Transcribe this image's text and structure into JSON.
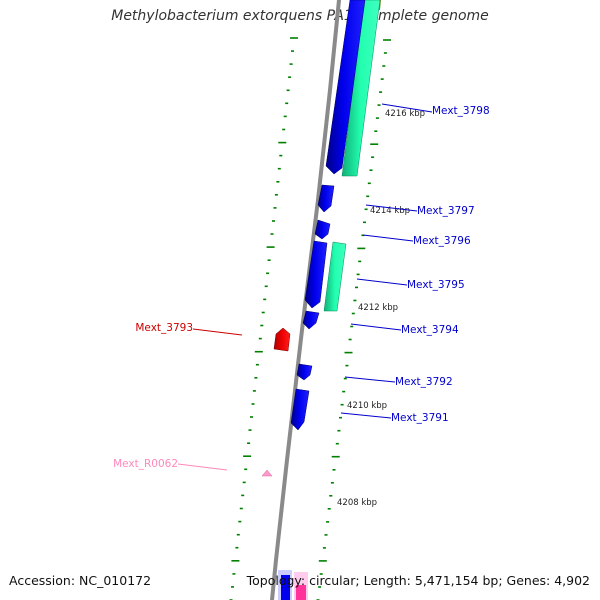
{
  "title": "Methylobacterium extorquens PA1, complete genome",
  "footer": {
    "accession": "Accession: NC_010172",
    "summary": "Topology: circular; Length: 5,471,154 bp; Genes: 4,902"
  },
  "colors": {
    "cds": "#0000ee",
    "cds_dark": "#00008a",
    "gene": "#22ffb0",
    "gene_dark": "#10b078",
    "other_cds": "#ee0000",
    "rna": "#ff99cc",
    "backbone": "#8a8a8a",
    "ticks": "#008000"
  },
  "ruler_labels": [
    {
      "label": "4216 kbp",
      "kbp": 4216
    },
    {
      "label": "4214 kbp",
      "kbp": 4214
    },
    {
      "label": "4212 kbp",
      "kbp": 4212
    },
    {
      "label": "4210 kbp",
      "kbp": 4210
    },
    {
      "label": "4208 kbp",
      "kbp": 4208
    }
  ],
  "gene_labels": [
    {
      "label": "Mext_3798",
      "side": "right",
      "kind": "cds"
    },
    {
      "label": "Mext_3797",
      "side": "right",
      "kind": "cds"
    },
    {
      "label": "Mext_3796",
      "side": "right",
      "kind": "cds"
    },
    {
      "label": "Mext_3795",
      "side": "right",
      "kind": "cds"
    },
    {
      "label": "Mext_3794",
      "side": "right",
      "kind": "cds"
    },
    {
      "label": "Mext_3793",
      "side": "left",
      "kind": "other"
    },
    {
      "label": "Mext_3792",
      "side": "right",
      "kind": "cds"
    },
    {
      "label": "Mext_3791",
      "side": "right",
      "kind": "cds"
    },
    {
      "label": "Mext_R0062",
      "side": "left",
      "kind": "rna"
    }
  ]
}
